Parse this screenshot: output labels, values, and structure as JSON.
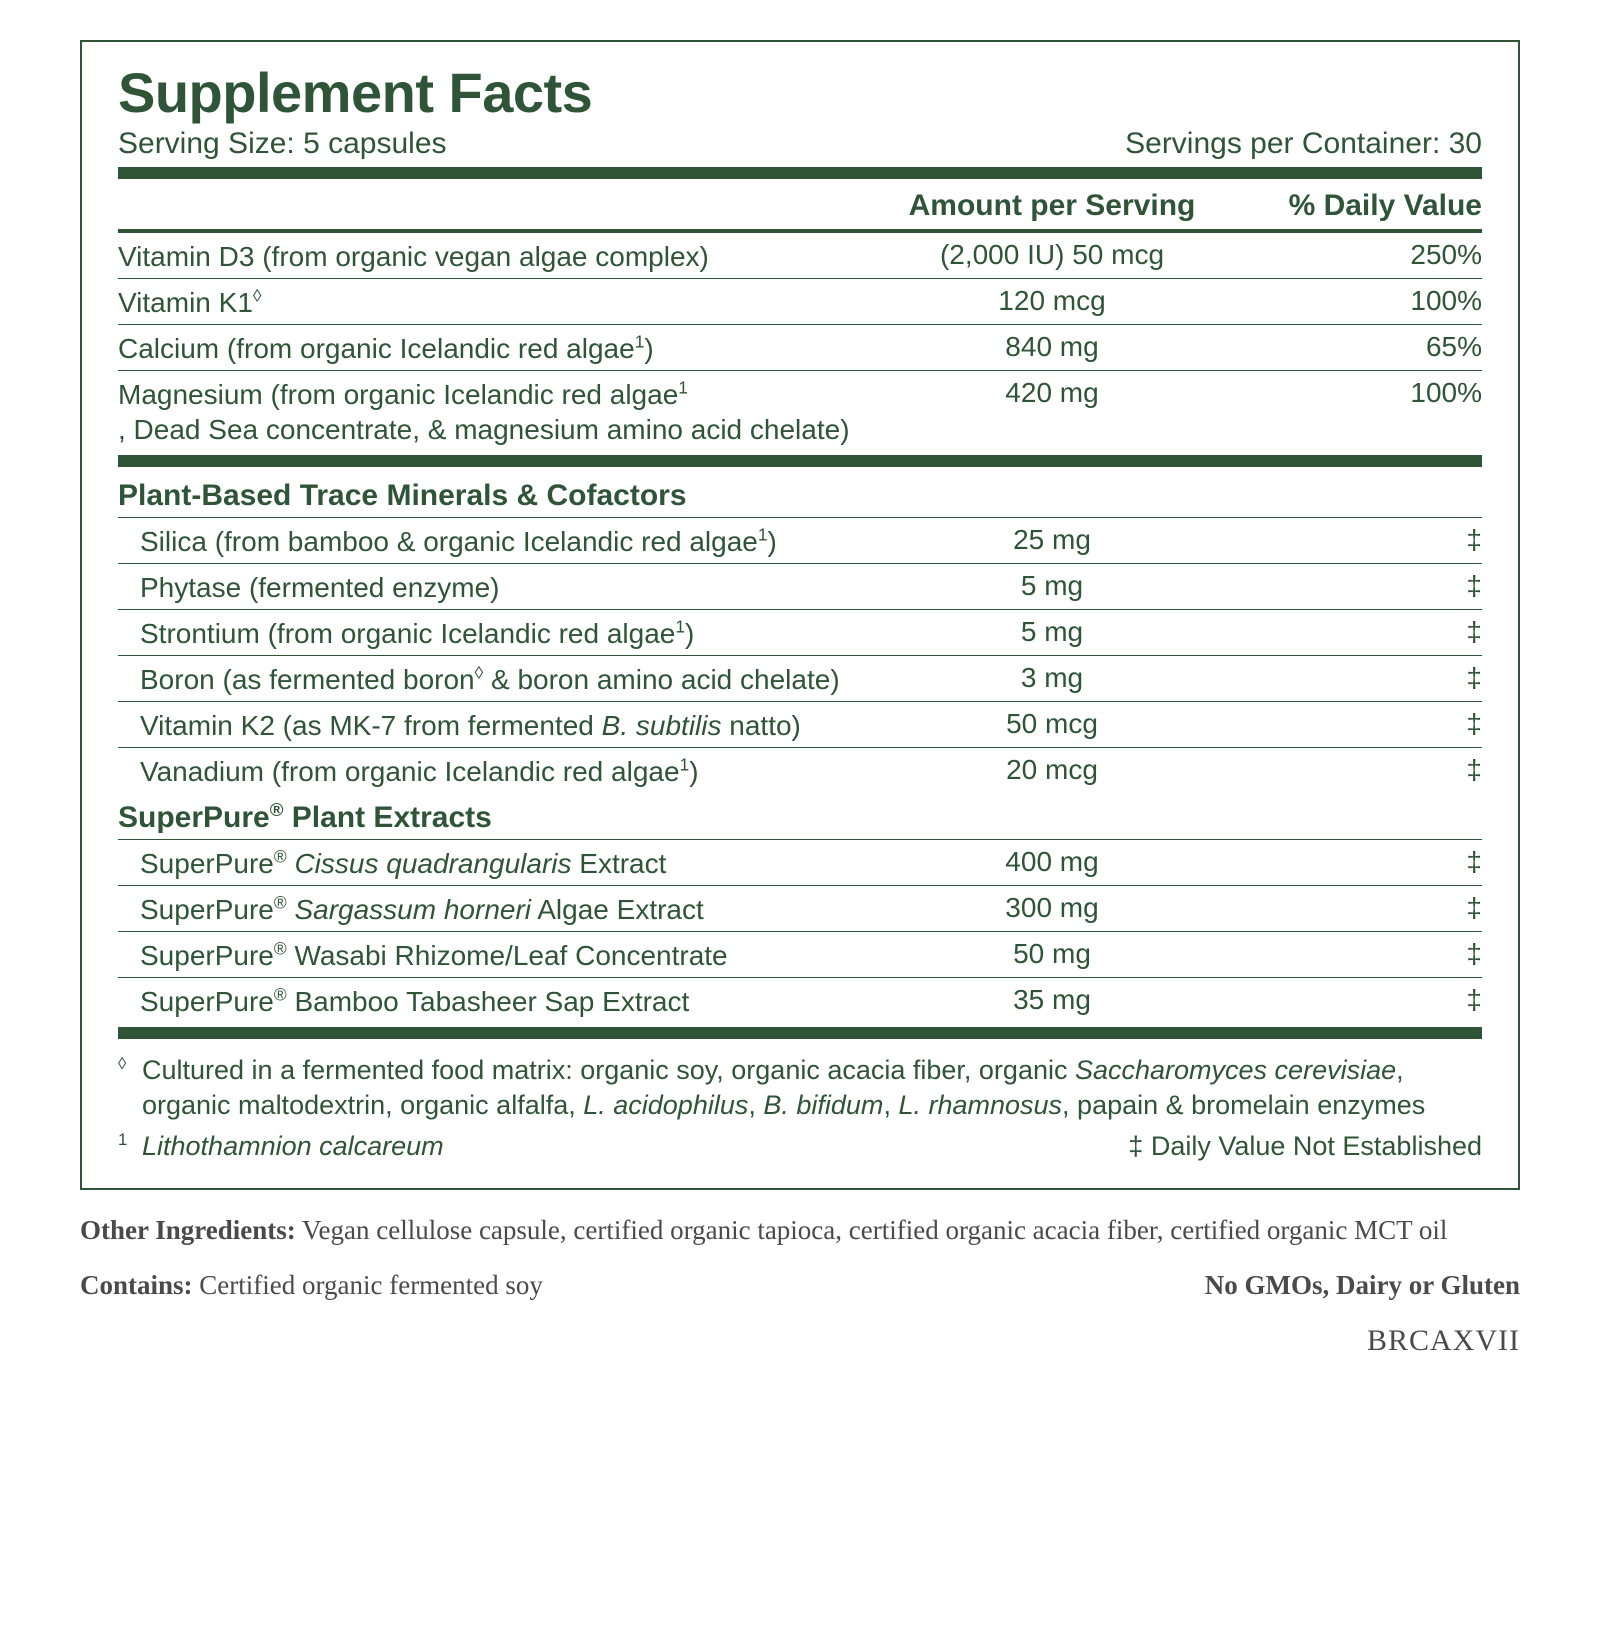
{
  "title": "Supplement Facts",
  "serving_size_label": "Serving Size: 5 capsules",
  "servings_per": "Servings per Container: 30",
  "hdr_amount": "Amount per Serving",
  "hdr_dv": "% Daily Value",
  "main": [
    {
      "name": "Vitamin D3 (from organic vegan algae complex)",
      "amt": "(2,000 IU) 50 mcg",
      "dv": "250%",
      "sup": ""
    },
    {
      "name": "Vitamin K1",
      "amt": "120 mcg",
      "dv": "100%",
      "sup": "◊"
    },
    {
      "name": "Calcium (from organic Icelandic red algae",
      "amt": "840 mg",
      "dv": "65%",
      "sup": "1",
      "close": ")"
    },
    {
      "name": "Magnesium (from organic Icelandic red algae",
      "name2": ", Dead Sea concentrate, & magnesium amino acid chelate)",
      "amt": "420 mg",
      "dv": "100%",
      "sup": "1"
    }
  ],
  "sub1_title": "Plant-Based Trace Minerals & Cofactors",
  "sub1": [
    {
      "name": "Silica (from bamboo & organic Icelandic red algae",
      "sup": "1",
      "close": ")",
      "amt": "25 mg",
      "dv": "‡"
    },
    {
      "name": "Phytase (fermented enzyme)",
      "amt": "5 mg",
      "dv": "‡"
    },
    {
      "name": "Strontium (from organic Icelandic red algae",
      "sup": "1",
      "close": ")",
      "amt": "5 mg",
      "dv": "‡"
    },
    {
      "name": "Boron (as fermented boron",
      "sup": "◊",
      "close": " & boron amino acid chelate)",
      "amt": "3 mg",
      "dv": "‡"
    },
    {
      "name": "Vitamin K2 (as MK-7 from fermented ",
      "ital": "B. subtilis",
      "close": " natto)",
      "amt": "50 mcg",
      "dv": "‡"
    },
    {
      "name": "Vanadium (from organic Icelandic red algae",
      "sup": "1",
      "close": ")",
      "amt": "20 mcg",
      "dv": "‡"
    }
  ],
  "sub2_title": "SuperPure",
  "sub2_reg": "®",
  "sub2_title_after": " Plant Extracts",
  "sub2": [
    {
      "pre": "SuperPure",
      "reg": "®",
      "ital": " Cissus quadrangularis",
      "post": " Extract",
      "amt": "400 mg",
      "dv": "‡"
    },
    {
      "pre": "SuperPure",
      "reg": "®",
      "ital": " Sargassum horneri",
      "post": " Algae Extract",
      "amt": "300 mg",
      "dv": "‡"
    },
    {
      "pre": "SuperPure",
      "reg": "®",
      "post": " Wasabi Rhizome/Leaf Concentrate",
      "amt": "50 mg",
      "dv": "‡"
    },
    {
      "pre": "SuperPure",
      "reg": "®",
      "post": " Bamboo Tabasheer Sap Extract",
      "amt": "35 mg",
      "dv": "‡"
    }
  ],
  "foot_diamond_sym": "◊",
  "foot_diamond_a": "Cultured in a fermented food matrix: organic soy, organic acacia fiber, organic ",
  "foot_diamond_i1": "Saccharomyces cerevisiae",
  "foot_diamond_b": ", organic maltodextrin, organic alfalfa, ",
  "foot_diamond_i2": "L. acidophilus",
  "foot_diamond_c": ", ",
  "foot_diamond_i3": "B. bifidum",
  "foot_diamond_d": ", ",
  "foot_diamond_i4": "L. rhamnosus",
  "foot_diamond_e": ", papain & bromelain enzymes",
  "foot_one_sym": "1",
  "foot_one": "Lithothamnion calcareum",
  "foot_dagger": "‡ Daily Value Not Established",
  "other_bold": "Other Ingredients:",
  "other": " Vegan cellulose capsule, certified organic tapioca, certified organic acacia fiber, certified organic MCT oil",
  "contains_bold": "Contains:",
  "contains": " Certified organic fermented soy",
  "nogmo": "No GMOs, Dairy or Gluten",
  "code": "BRCAXVII"
}
